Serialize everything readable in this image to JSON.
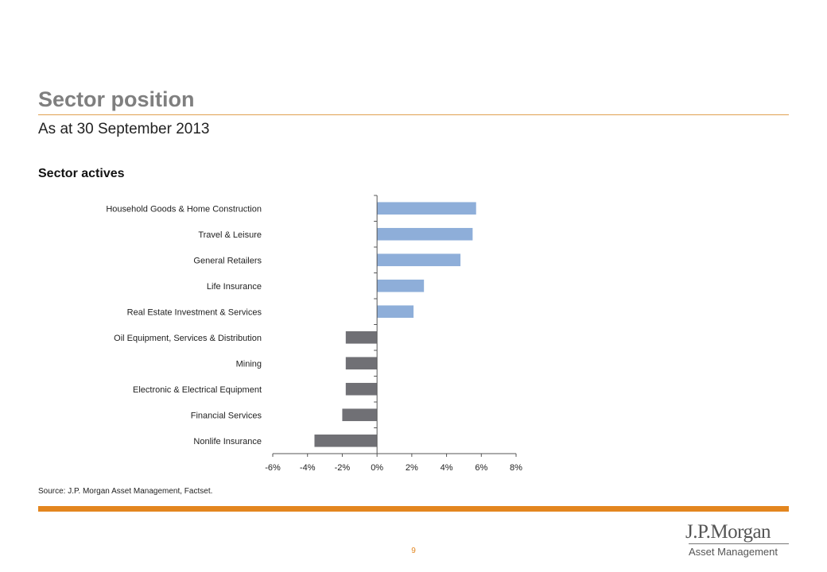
{
  "header": {
    "title": "Sector position",
    "subtitle": "As at 30 September 2013"
  },
  "chart_data": {
    "type": "bar",
    "orientation": "horizontal",
    "title": "Sector actives",
    "categories": [
      "Household Goods & Home Construction",
      "Travel & Leisure",
      "General Retailers",
      "Life Insurance",
      "Real Estate Investment & Services",
      "Oil Equipment, Services & Distribution",
      "Mining",
      "Electronic & Electrical Equipment",
      "Financial Services",
      "Nonlife Insurance"
    ],
    "values": [
      5.7,
      5.5,
      4.8,
      2.7,
      2.1,
      -1.8,
      -1.8,
      -1.8,
      -2.0,
      -3.6
    ],
    "xlim": [
      -6,
      8
    ],
    "xticks": [
      "-6%",
      "-4%",
      "-2%",
      "0%",
      "2%",
      "4%",
      "6%",
      "8%"
    ],
    "xtick_values": [
      -6,
      -4,
      -2,
      0,
      2,
      4,
      6,
      8
    ],
    "positive_color": "#8eaed9",
    "negative_color": "#707075",
    "grid": false,
    "legend": "none"
  },
  "footer": {
    "source": "Source: J.P. Morgan Asset Management, Factset.",
    "page_number": "9",
    "logo_main": "J.P.Morgan",
    "logo_sub": "Asset Management",
    "accent_color": "#e3861f"
  }
}
